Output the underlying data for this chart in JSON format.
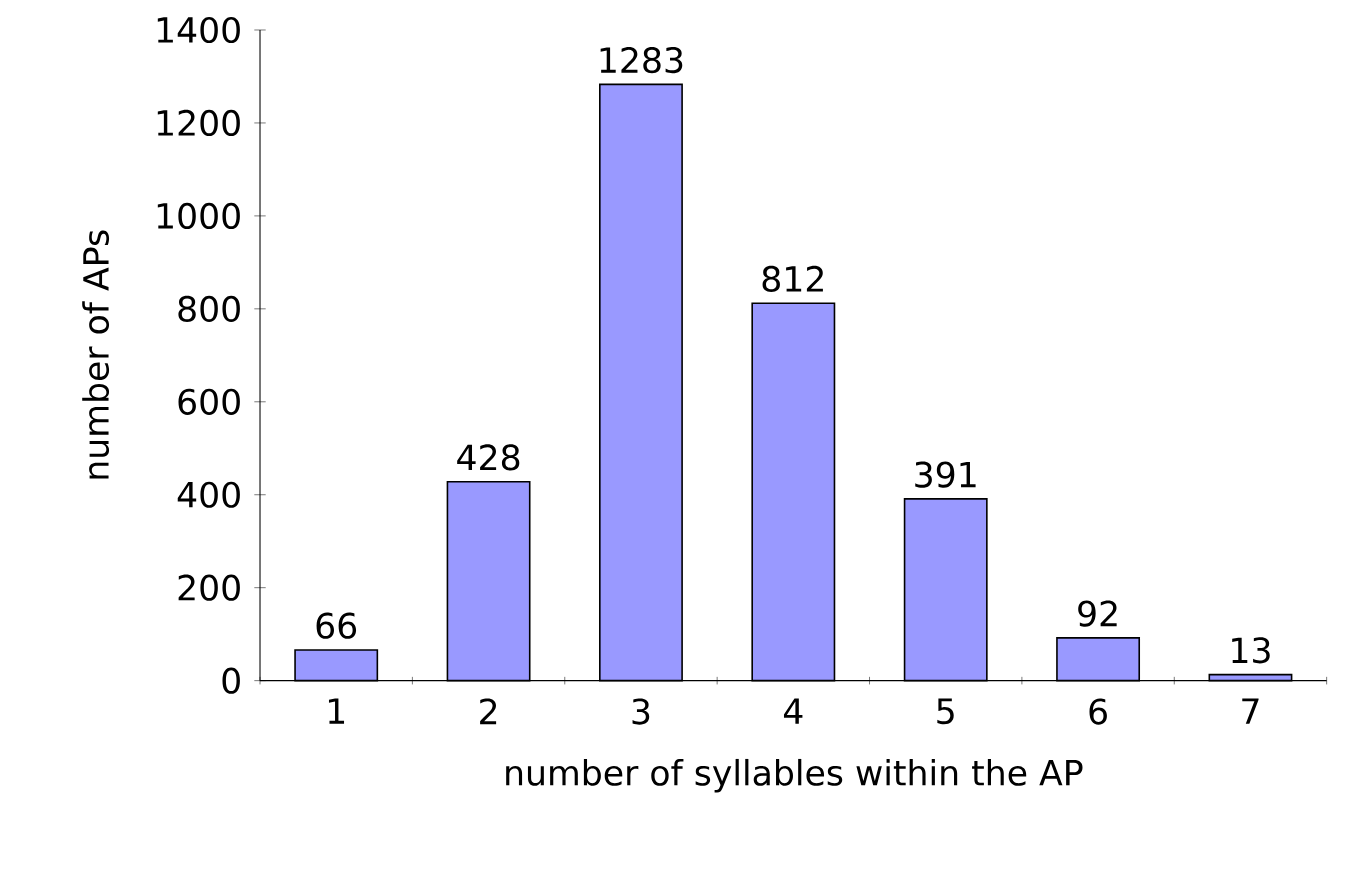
{
  "chart_data": {
    "type": "bar",
    "xlabel": "number of syllables within the AP",
    "ylabel": "number of APs",
    "categories": [
      "1",
      "2",
      "3",
      "4",
      "5",
      "6",
      "7"
    ],
    "values": [
      66,
      428,
      1283,
      812,
      391,
      92,
      13
    ],
    "color": "#9999ff",
    "ylim": [
      0,
      1400
    ],
    "yticks": [
      0,
      200,
      400,
      600,
      800,
      1000,
      1200,
      1400
    ],
    "data_labels": true
  }
}
